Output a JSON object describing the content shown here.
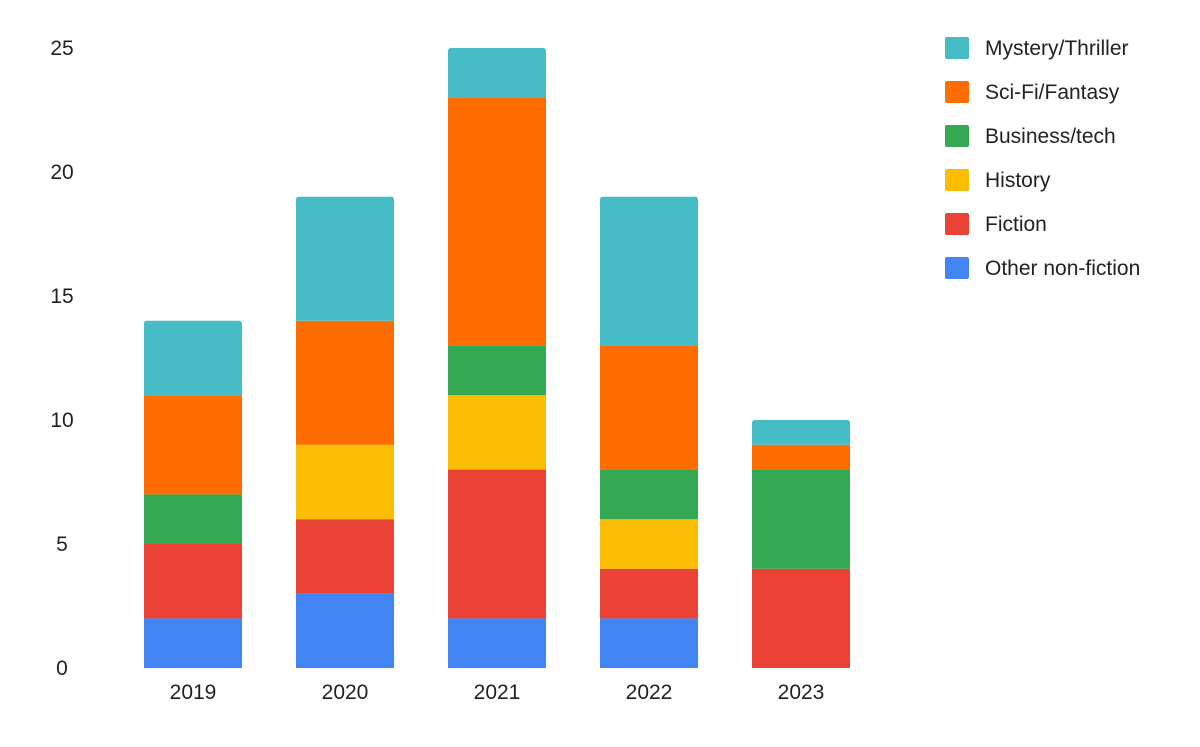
{
  "chart_data": {
    "type": "bar",
    "stacked": true,
    "categories": [
      "2019",
      "2020",
      "2021",
      "2022",
      "2023"
    ],
    "series": [
      {
        "name": "Other non-fiction",
        "color": "#4285F4",
        "values": [
          2,
          3,
          2,
          2,
          0
        ]
      },
      {
        "name": "Fiction",
        "color": "#EA4335",
        "values": [
          3,
          3,
          6,
          2,
          4
        ]
      },
      {
        "name": "History",
        "color": "#FBBC04",
        "values": [
          0,
          3,
          3,
          2,
          0
        ]
      },
      {
        "name": "Business/tech",
        "color": "#34A853",
        "values": [
          2,
          0,
          2,
          2,
          4
        ]
      },
      {
        "name": "Sci-Fi/Fantasy",
        "color": "#FF6D01",
        "values": [
          4,
          5,
          10,
          5,
          1
        ]
      },
      {
        "name": "Mystery/Thriller",
        "color": "#46BDC6",
        "values": [
          3,
          5,
          2,
          6,
          1
        ]
      }
    ],
    "legend_order": [
      "Mystery/Thriller",
      "Sci-Fi/Fantasy",
      "Business/tech",
      "History",
      "Fiction",
      "Other non-fiction"
    ],
    "legend_position": "right",
    "ylim": [
      0,
      25
    ],
    "yticks": [
      0,
      5,
      10,
      15,
      20,
      25
    ],
    "grid": false,
    "title": "",
    "xlabel": "",
    "ylabel": ""
  }
}
